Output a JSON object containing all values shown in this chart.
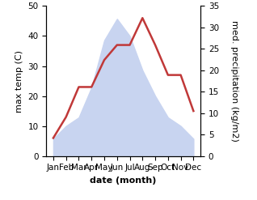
{
  "months": [
    "Jan",
    "Feb",
    "Mar",
    "Apr",
    "May",
    "Jun",
    "Jul",
    "Aug",
    "Sep",
    "Oct",
    "Nov",
    "Dec"
  ],
  "temperature": [
    6,
    13,
    23,
    23,
    32,
    37,
    37,
    46,
    37,
    27,
    27,
    15
  ],
  "precipitation": [
    4,
    7,
    9,
    16,
    27,
    32,
    28,
    20,
    14,
    9,
    7,
    4
  ],
  "temp_color": "#c03838",
  "precip_fill_color": "#c8d4f0",
  "temp_ylim": [
    0,
    50
  ],
  "precip_ylim": [
    0,
    35
  ],
  "xlabel": "date (month)",
  "ylabel_left": "max temp (C)",
  "ylabel_right": "med. precipitation (kg/m2)",
  "label_fontsize": 8,
  "tick_fontsize": 7.5
}
